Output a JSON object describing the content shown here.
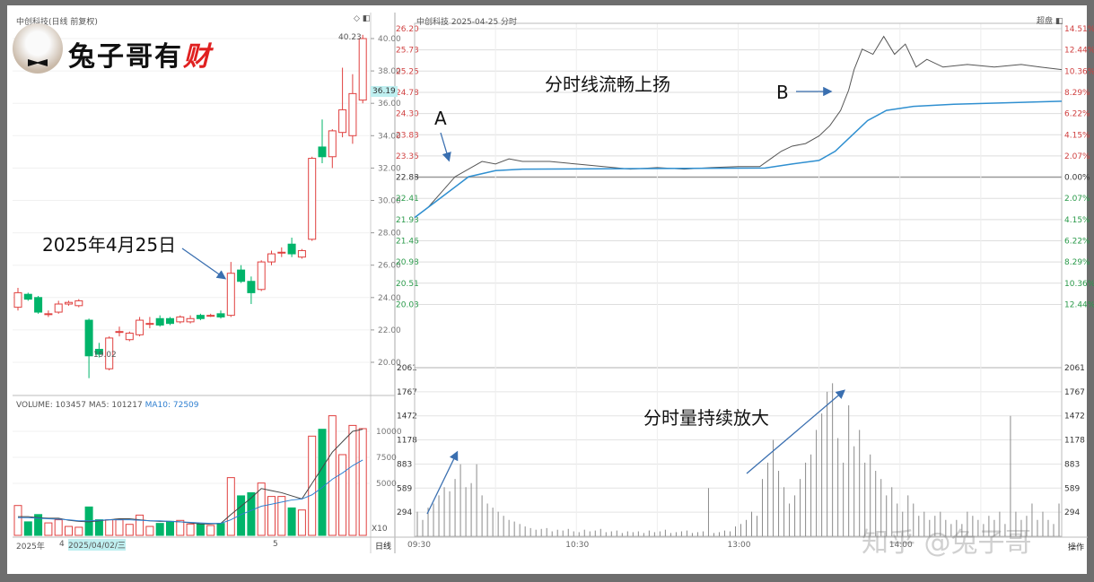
{
  "left_panel": {
    "title": "中创科技(日线 前复权)",
    "price_axis": [
      "40.00",
      "38.00",
      "36.00",
      "34.00",
      "32.00",
      "30.00",
      "28.00",
      "26.00",
      "24.00",
      "22.00",
      "20.00"
    ],
    "current_price_tag": "36.19",
    "high_label": "40.23",
    "low_label": "19.02",
    "volume_legend": {
      "volume": "VOLUME: 103457",
      "ma5": "MA5: 101217",
      "ma10": "MA10: 72509"
    },
    "volume_axis": [
      "10000",
      "7500",
      "5000"
    ],
    "volume_unit": "X10",
    "date_axis": {
      "year": "2025年",
      "month4": "4",
      "selected_date": "2025/04/02/三",
      "month5": "5"
    },
    "period_button": "日线",
    "candles_ohlc": [
      [
        23.4,
        24.3,
        24.6,
        23.2
      ],
      [
        24.2,
        23.9,
        24.3,
        23.8
      ],
      [
        24.0,
        23.1,
        24.1,
        23.0
      ],
      [
        23.0,
        23.0,
        23.2,
        22.8
      ],
      [
        23.1,
        23.6,
        23.8,
        23.0
      ],
      [
        23.6,
        23.7,
        23.8,
        23.5
      ],
      [
        23.5,
        23.8,
        23.9,
        23.4
      ],
      [
        22.6,
        20.4,
        22.7,
        19.02
      ],
      [
        20.8,
        20.5,
        21.2,
        20.3
      ],
      [
        19.6,
        21.5,
        21.6,
        19.5
      ],
      [
        21.9,
        21.9,
        22.2,
        21.6
      ],
      [
        21.4,
        21.8,
        21.9,
        21.3
      ],
      [
        21.7,
        22.6,
        22.8,
        21.6
      ],
      [
        22.4,
        22.4,
        22.8,
        22.1
      ],
      [
        22.7,
        22.3,
        22.9,
        22.2
      ],
      [
        22.7,
        22.4,
        22.8,
        22.3
      ],
      [
        22.5,
        22.8,
        22.9,
        22.4
      ],
      [
        22.5,
        22.7,
        22.9,
        22.4
      ],
      [
        22.9,
        22.7,
        23.0,
        22.6
      ],
      [
        22.9,
        22.9,
        23.0,
        22.8
      ],
      [
        23.0,
        22.8,
        23.2,
        22.7
      ],
      [
        22.9,
        25.5,
        26.2,
        22.8
      ],
      [
        25.7,
        25.0,
        26.0,
        24.9
      ],
      [
        25.0,
        24.3,
        25.3,
        23.6
      ],
      [
        24.5,
        26.2,
        26.3,
        24.4
      ],
      [
        26.2,
        26.7,
        26.9,
        26.0
      ],
      [
        26.8,
        26.8,
        27.1,
        26.5
      ],
      [
        27.3,
        26.7,
        27.7,
        26.5
      ],
      [
        26.5,
        26.9,
        27.0,
        26.4
      ],
      [
        27.6,
        32.6,
        32.7,
        27.5
      ],
      [
        33.3,
        32.7,
        35.0,
        32.3
      ],
      [
        32.7,
        34.3,
        34.4,
        32.0
      ],
      [
        34.2,
        35.6,
        38.2,
        33.9
      ],
      [
        34.0,
        36.6,
        37.8,
        33.5
      ],
      [
        36.2,
        40.0,
        40.23,
        36.0
      ]
    ],
    "volumes": [
      2870,
      1300,
      2000,
      1200,
      1500,
      860,
      780,
      2730,
      1500,
      1500,
      1500,
      1060,
      1950,
      860,
      1150,
      1350,
      1440,
      1090,
      1090,
      950,
      1150,
      5550,
      3800,
      4100,
      5030,
      3740,
      3740,
      2640,
      2440,
      9540,
      10200,
      11500,
      7760,
      10570,
      10260
    ],
    "ma5_line": [
      1800,
      1800,
      1700,
      1650,
      1650,
      1450,
      1350,
      1300,
      1400,
      1500,
      1600,
      1600,
      1500,
      1400,
      1350,
      1350,
      1300,
      1200,
      1100,
      1100,
      1150,
      2000,
      2800,
      3600,
      4500,
      4300,
      4100,
      3800,
      3500,
      5000,
      6500,
      8000,
      9000,
      10000,
      10200
    ],
    "ma10_line": [
      1700,
      1700,
      1650,
      1600,
      1550,
      1500,
      1400,
      1400,
      1450,
      1500,
      1500,
      1500,
      1450,
      1400,
      1400,
      1350,
      1300,
      1250,
      1200,
      1150,
      1150,
      1500,
      2000,
      2400,
      2800,
      3000,
      3200,
      3400,
      3500,
      3900,
      4600,
      5400,
      6000,
      6700,
      7250
    ],
    "colors": {
      "up": "#e0403f",
      "down": "#00b46a",
      "ma5": "#444444",
      "ma10": "#2f7fd0"
    }
  },
  "right_panel": {
    "title": "中创科技  2025-04-25 分时",
    "toolbar_label": "超盘",
    "price_axis": [
      "26.20",
      "25.73",
      "25.25",
      "24.78",
      "24.30",
      "23.83",
      "23.35",
      "22.88",
      "22.41",
      "21.93",
      "21.46",
      "20.98",
      "20.51",
      "20.03"
    ],
    "pct_axis": [
      "14.51%",
      "12.44%",
      "10.36%",
      "8.29%",
      "6.22%",
      "4.15%",
      "2.07%",
      "0.00%",
      "2.07%",
      "4.15%",
      "6.22%",
      "8.29%",
      "10.36%",
      "12.44%"
    ],
    "volume_axis": [
      "2061",
      "1767",
      "1472",
      "1178",
      "883",
      "589",
      "294"
    ],
    "time_axis": [
      "09:30",
      "10:30",
      "13:00",
      "14:00"
    ],
    "operate_button": "操作",
    "chart_data": {
      "type": "line",
      "price_series_minutes_price": [
        [
          0,
          22.5
        ],
        [
          5,
          22.7
        ],
        [
          10,
          23.0
        ],
        [
          15,
          23.3
        ],
        [
          20,
          23.45
        ],
        [
          25,
          23.6
        ],
        [
          30,
          23.55
        ],
        [
          35,
          23.65
        ],
        [
          40,
          23.6
        ],
        [
          50,
          23.6
        ],
        [
          60,
          23.55
        ],
        [
          70,
          23.5
        ],
        [
          80,
          23.45
        ],
        [
          90,
          23.48
        ],
        [
          100,
          23.45
        ],
        [
          110,
          23.48
        ],
        [
          120,
          23.5
        ],
        [
          128,
          23.5
        ],
        [
          132,
          23.65
        ],
        [
          136,
          23.8
        ],
        [
          140,
          23.9
        ],
        [
          145,
          23.95
        ],
        [
          150,
          24.1
        ],
        [
          154,
          24.3
        ],
        [
          158,
          24.6
        ],
        [
          161,
          25.0
        ],
        [
          163,
          25.4
        ],
        [
          166,
          25.8
        ],
        [
          170,
          25.7
        ],
        [
          174,
          26.05
        ],
        [
          178,
          25.7
        ],
        [
          182,
          25.9
        ],
        [
          186,
          25.45
        ],
        [
          190,
          25.6
        ],
        [
          196,
          25.45
        ],
        [
          205,
          25.5
        ],
        [
          215,
          25.45
        ],
        [
          225,
          25.5
        ],
        [
          232,
          25.45
        ],
        [
          240,
          25.4
        ]
      ],
      "avg_series_minutes_price": [
        [
          0,
          22.5
        ],
        [
          10,
          22.9
        ],
        [
          20,
          23.3
        ],
        [
          30,
          23.42
        ],
        [
          40,
          23.45
        ],
        [
          130,
          23.47
        ],
        [
          140,
          23.55
        ],
        [
          150,
          23.62
        ],
        [
          156,
          23.8
        ],
        [
          162,
          24.1
        ],
        [
          168,
          24.4
        ],
        [
          175,
          24.6
        ],
        [
          185,
          24.68
        ],
        [
          200,
          24.72
        ],
        [
          240,
          24.78
        ]
      ],
      "volume_every_2min": [
        300,
        200,
        350,
        400,
        500,
        600,
        550,
        700,
        880,
        600,
        650,
        880,
        500,
        400,
        350,
        300,
        250,
        200,
        180,
        150,
        120,
        100,
        80,
        90,
        100,
        60,
        80,
        70,
        90,
        60,
        50,
        80,
        60,
        70,
        90,
        50,
        60,
        70,
        40,
        60,
        50,
        60,
        40,
        70,
        50,
        60,
        80,
        40,
        50,
        60,
        70,
        40,
        50,
        60,
        589,
        40,
        50,
        70,
        60,
        120,
        150,
        200,
        300,
        250,
        700,
        900,
        1178,
        800,
        600,
        400,
        500,
        700,
        900,
        1000,
        1300,
        1500,
        1767,
        1870,
        1200,
        900,
        1600,
        1100,
        1300,
        900,
        1000,
        800,
        700,
        500,
        600,
        400,
        300,
        500,
        400,
        250,
        300,
        200,
        250,
        300,
        200,
        150,
        200,
        150,
        300,
        250,
        200,
        150,
        250,
        200,
        300,
        150,
        1472,
        300,
        200,
        250,
        400,
        200,
        300,
        200,
        150,
        400
      ],
      "prev_close": 22.88,
      "colors": {
        "price": "#555555",
        "avg": "#2f8fd0",
        "volume": "#8a8a8a"
      }
    }
  },
  "annotations": {
    "date_label": "2025年4月25日",
    "line_label": "分时线流畅上扬",
    "point_a": "A",
    "point_b": "B",
    "volume_label": "分时量持续放大"
  },
  "logo": {
    "text_black": "兔子哥有",
    "text_red": "财"
  },
  "watermark": "知乎 @兔子哥"
}
